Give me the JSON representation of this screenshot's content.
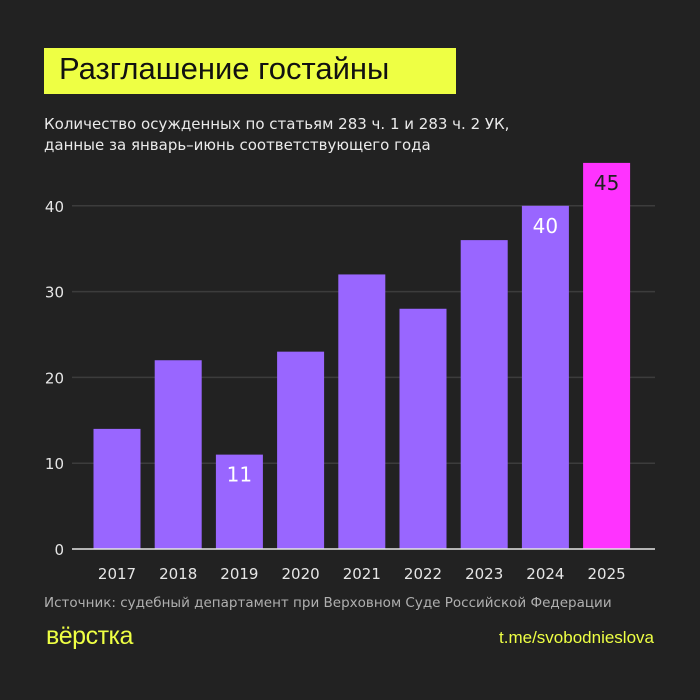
{
  "title": "Разглашение гостайны",
  "subtitle_line1": "Количество осужденных по статьям 283 ч. 1 и 283 ч. 2 УК,",
  "subtitle_line2": "данные за январь–июнь соответствующего года",
  "source": "Источник: судебный департамент при Верховном Суде Российской Федерации",
  "logo": "вёрстка",
  "link": "t.me/svobodnieslova",
  "colors": {
    "background": "#222222",
    "bar": "#9966ff",
    "highlight": "#ff33ff",
    "title_bg": "#eeff44"
  },
  "chart_data": {
    "type": "bar",
    "categories": [
      "2017",
      "2018",
      "2019",
      "2020",
      "2021",
      "2022",
      "2023",
      "2024",
      "2025"
    ],
    "values": [
      14,
      22,
      11,
      23,
      32,
      28,
      36,
      40,
      45
    ],
    "labeled": [
      "2019",
      "2024",
      "2025"
    ],
    "highlighted": [
      "2025"
    ],
    "yticks": [
      0,
      10,
      20,
      30,
      40
    ],
    "ylim": [
      0,
      45
    ],
    "grid": true
  }
}
